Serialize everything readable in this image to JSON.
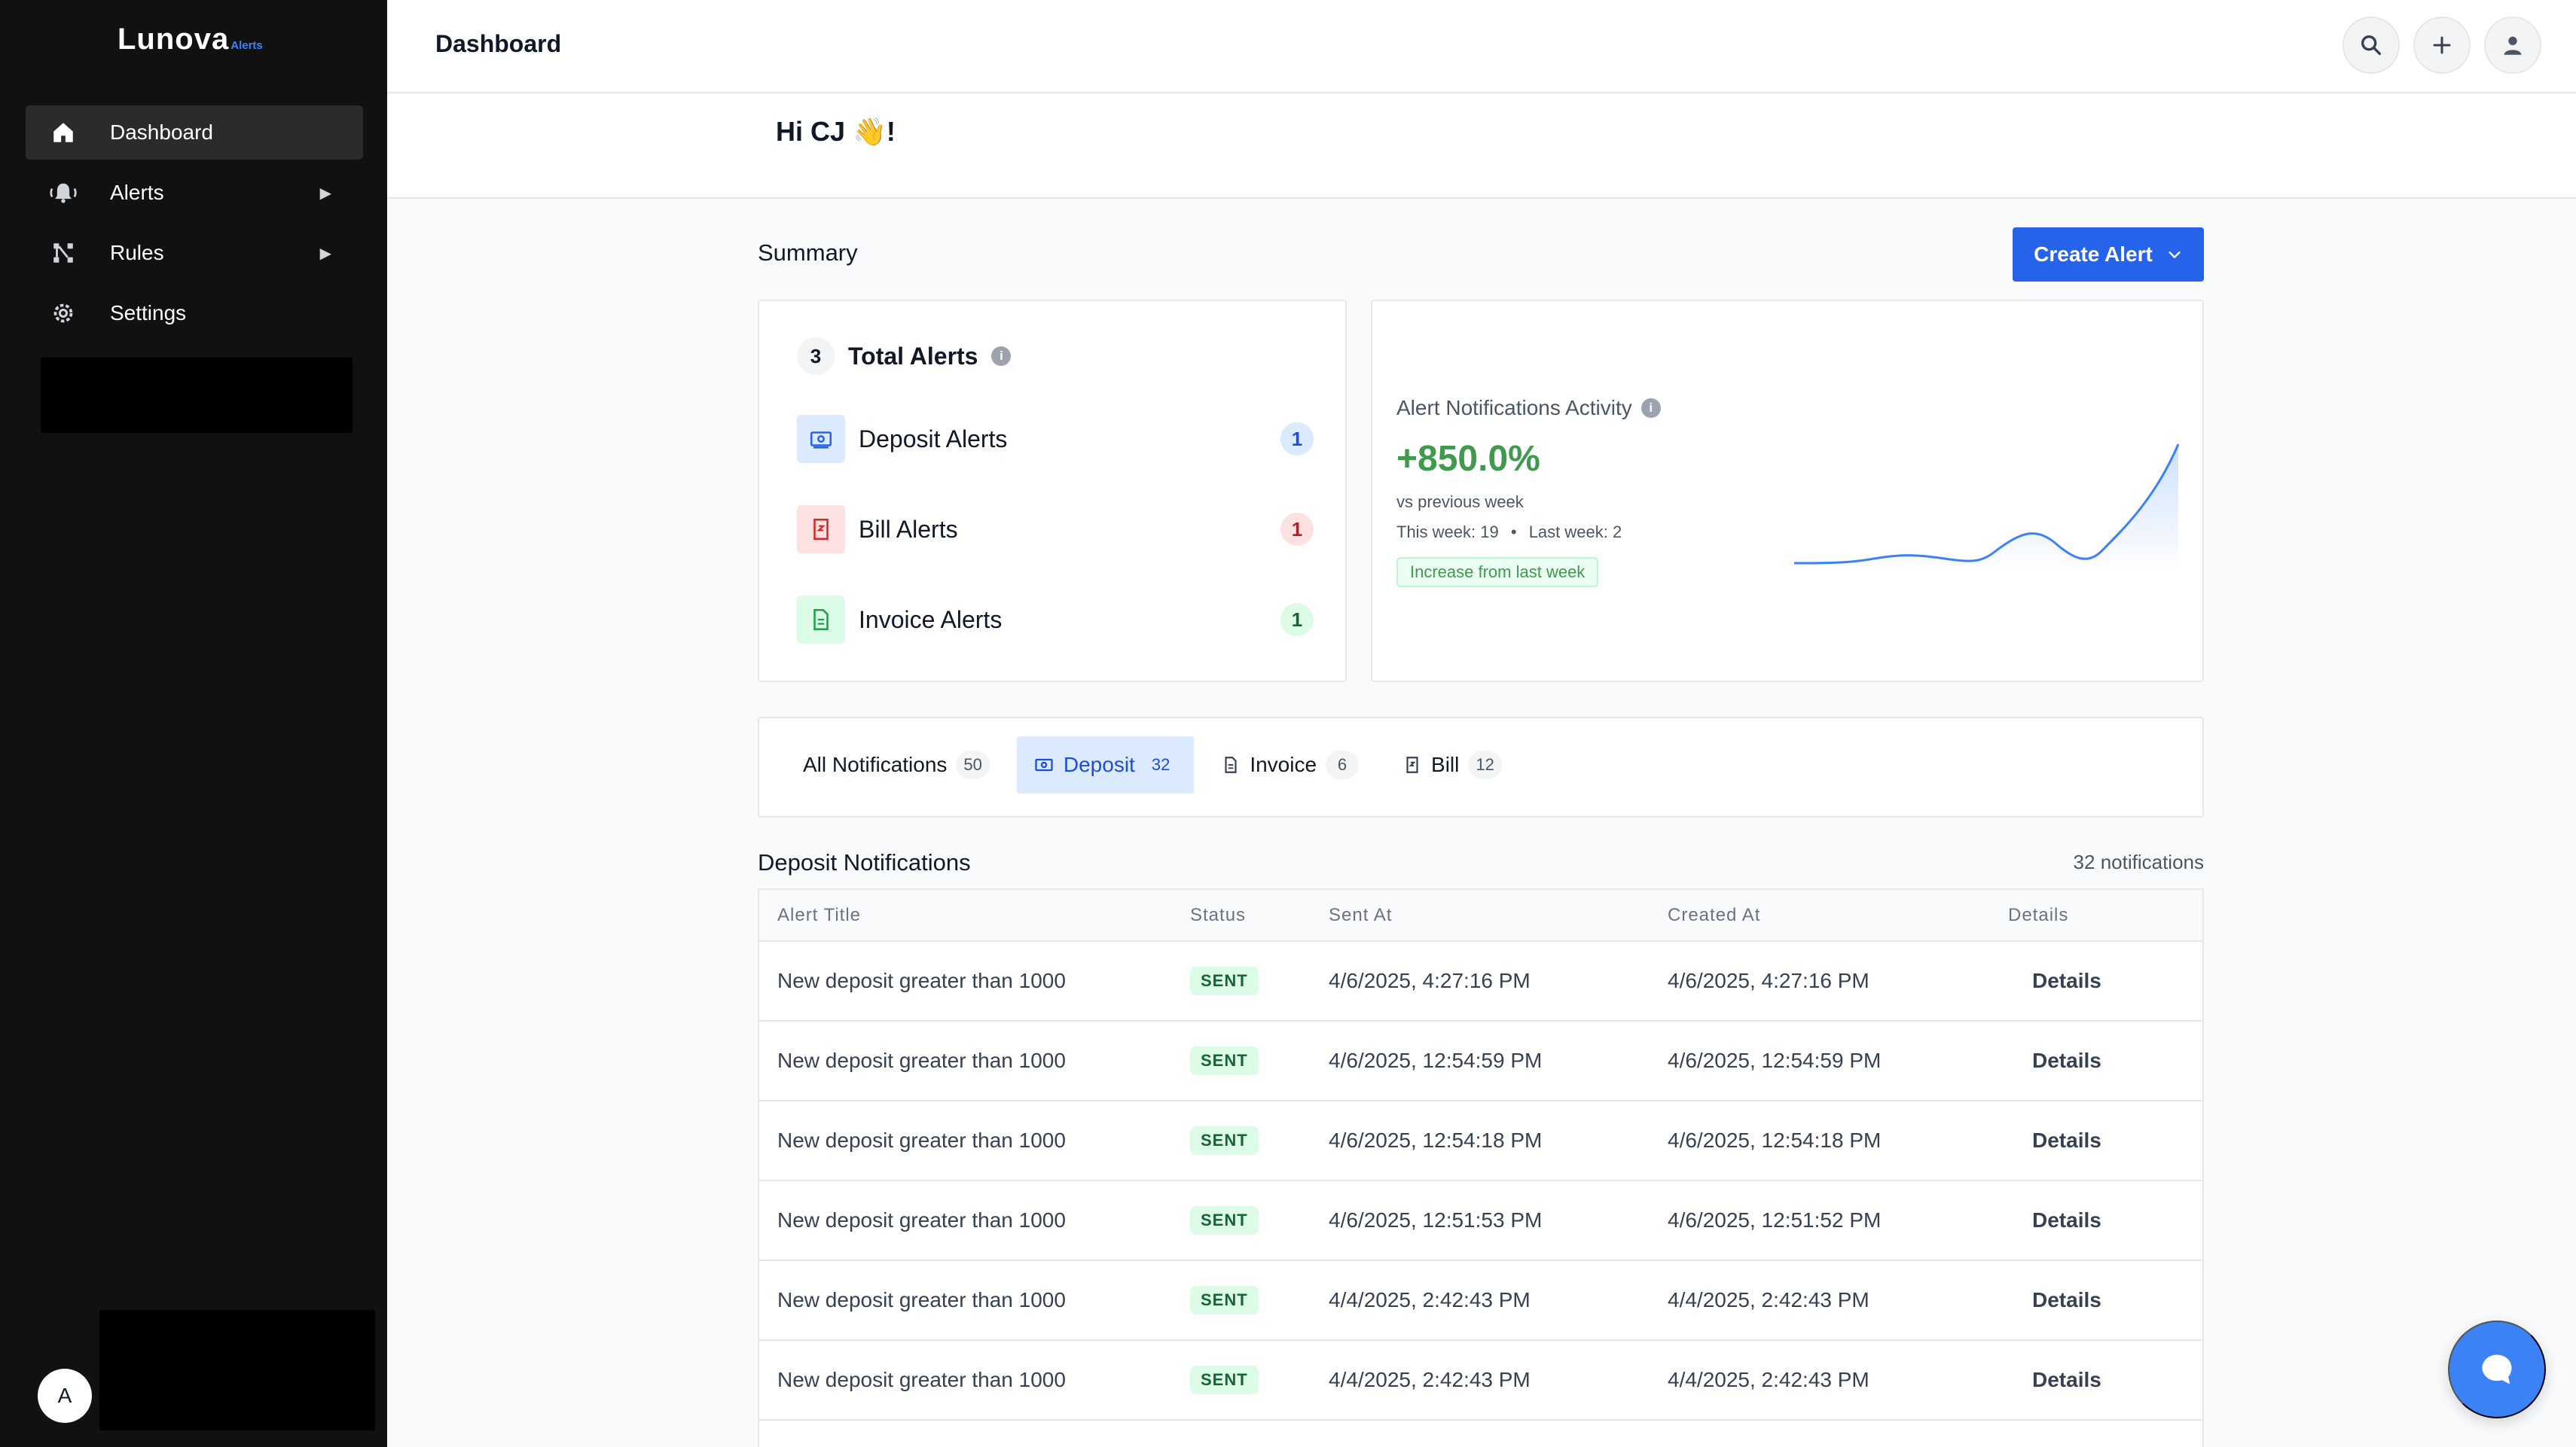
{
  "brand": {
    "name": "Lunova",
    "sub": "Alerts",
    "accent": "#2563eb"
  },
  "sidebar": {
    "items": [
      {
        "label": "Dashboard",
        "icon": "home-icon",
        "active": true
      },
      {
        "label": "Alerts",
        "icon": "bell-icon",
        "arrow": "▶"
      },
      {
        "label": "Rules",
        "icon": "rules-icon",
        "arrow": "▶"
      },
      {
        "label": "Settings",
        "icon": "gear-icon"
      }
    ],
    "user_initial": "A"
  },
  "header": {
    "title": "Dashboard"
  },
  "greeting": "Hi CJ 👋!",
  "summary": {
    "title": "Summary",
    "create_button": "Create Alert",
    "total": {
      "count": "3",
      "label": "Total Alerts"
    },
    "alerts": [
      {
        "label": "Deposit Alerts",
        "count": "1",
        "color": "#2563eb"
      },
      {
        "label": "Bill Alerts",
        "count": "1",
        "color": "#dc2626"
      },
      {
        "label": "Invoice Alerts",
        "count": "1",
        "color": "#16a34a"
      }
    ]
  },
  "activity": {
    "title": "Alert Notifications Activity",
    "change": "+850.0%",
    "vs": "vs previous week",
    "this_week": "This week: 19",
    "separator": "•",
    "last_week": "Last week: 2",
    "badge": "Increase from last week",
    "positive_color": "#3f9a4e"
  },
  "tabs": [
    {
      "label": "All Notifications",
      "count": "50"
    },
    {
      "label": "Deposit",
      "count": "32",
      "active": true
    },
    {
      "label": "Invoice",
      "count": "6"
    },
    {
      "label": "Bill",
      "count": "12"
    }
  ],
  "list": {
    "title": "Deposit Notifications",
    "count_text": "32 notifications",
    "columns": [
      "Alert Title",
      "Status",
      "Sent At",
      "Created At",
      "Details"
    ],
    "rows": [
      {
        "title": "New deposit greater than 1000",
        "status": "SENT",
        "sent_at": "4/6/2025, 4:27:16 PM",
        "created_at": "4/6/2025, 4:27:16 PM",
        "details": "Details"
      },
      {
        "title": "New deposit greater than 1000",
        "status": "SENT",
        "sent_at": "4/6/2025, 12:54:59 PM",
        "created_at": "4/6/2025, 12:54:59 PM",
        "details": "Details"
      },
      {
        "title": "New deposit greater than 1000",
        "status": "SENT",
        "sent_at": "4/6/2025, 12:54:18 PM",
        "created_at": "4/6/2025, 12:54:18 PM",
        "details": "Details"
      },
      {
        "title": "New deposit greater than 1000",
        "status": "SENT",
        "sent_at": "4/6/2025, 12:51:53 PM",
        "created_at": "4/6/2025, 12:51:52 PM",
        "details": "Details"
      },
      {
        "title": "New deposit greater than 1000",
        "status": "SENT",
        "sent_at": "4/4/2025, 2:42:43 PM",
        "created_at": "4/4/2025, 2:42:43 PM",
        "details": "Details"
      },
      {
        "title": "New deposit greater than 1000",
        "status": "SENT",
        "sent_at": "4/4/2025, 2:42:43 PM",
        "created_at": "4/4/2025, 2:42:43 PM",
        "details": "Details"
      },
      {
        "title": "",
        "status": "",
        "sent_at": "",
        "created_at": "",
        "details": ""
      }
    ]
  }
}
